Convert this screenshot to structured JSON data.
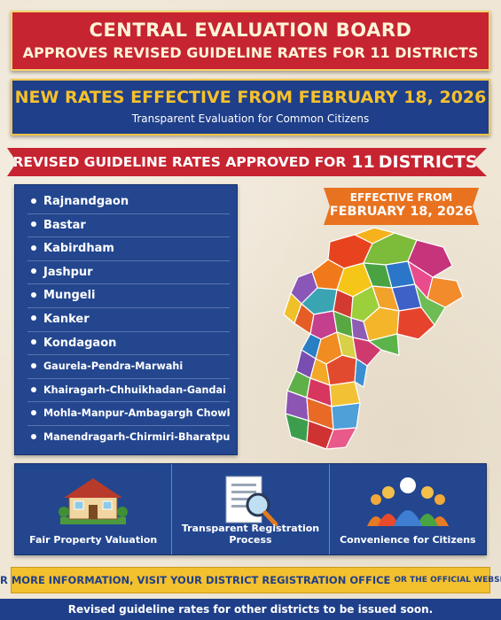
{
  "header": {
    "title": "CENTRAL EVALUATION BOARD",
    "subtitle": "APPROVES REVISED GUIDELINE RATES FOR 11 DISTRICTS"
  },
  "date_banner": {
    "headline": "NEW RATES EFFECTIVE FROM FEBRUARY 18, 2026",
    "tagline": "Transparent Evaluation for Common Citizens"
  },
  "ribbon": {
    "text": "REVISED GUIDELINE RATES APPROVED FOR",
    "count": "11",
    "suffix": "DISTRICTS"
  },
  "districts": [
    "Rajnandgaon",
    "Bastar",
    "Kabirdham",
    "Jashpur",
    "Mungeli",
    "Kanker",
    "Kondagaon",
    "Gaurela-Pendra-Marwahi",
    "Khairagarh-Chhuikhadan-Gandai",
    "Mohla-Manpur-Ambagargh Chowki",
    "Manendragarh-Chirmiri-Bharatpur"
  ],
  "effective_tag": {
    "line1": "EFFECTIVE FROM",
    "line2": "FEBRUARY 18, 2026"
  },
  "features": [
    {
      "label": "Fair Property Valuation",
      "icon": "house-icon"
    },
    {
      "label": "Transparent Registration Process",
      "icon": "document-magnifier-icon"
    },
    {
      "label": "Convenience for Citizens",
      "icon": "people-group-icon"
    }
  ],
  "info_bar": {
    "main": "FOR MORE INFORMATION, VISIT YOUR DISTRICT REGISTRATION OFFICE",
    "small": "OR THE OFFICIAL WEBSITE."
  },
  "footer": {
    "text": "Revised guideline rates for other districts to be issued soon."
  },
  "colors": {
    "red": "#c62430",
    "navy": "#1f3f8a",
    "gold": "#f3c02e",
    "orange": "#e8721f",
    "paper": "#efe6d6"
  }
}
